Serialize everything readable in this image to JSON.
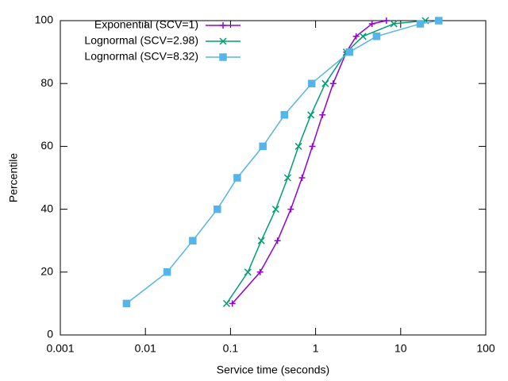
{
  "chart_data": {
    "type": "line",
    "xlabel": "Service time (seconds)",
    "ylabel": "Percentile",
    "xscale": "log",
    "xlim": [
      0.001,
      100
    ],
    "xticks": [
      0.001,
      0.01,
      0.1,
      1,
      10,
      100
    ],
    "ylim": [
      0,
      100
    ],
    "yticks": [
      0,
      20,
      40,
      60,
      80,
      100
    ],
    "legend": "top-left",
    "series": [
      {
        "name": "Exponential (SCV=1)",
        "color": "#9400d3",
        "marker": "plus",
        "x": [
          0.105,
          0.223,
          0.357,
          0.511,
          0.693,
          0.916,
          1.204,
          1.609,
          2.303,
          2.996,
          4.605,
          6.8
        ],
        "values": [
          10,
          20,
          30,
          40,
          50,
          60,
          70,
          80,
          90,
          95,
          99,
          100
        ]
      },
      {
        "name": "Lognormal (SCV=2.98)",
        "color": "#009e73",
        "marker": "cross",
        "x": [
          0.09,
          0.16,
          0.23,
          0.34,
          0.47,
          0.63,
          0.88,
          1.3,
          2.3,
          3.6,
          8.3,
          19.5
        ],
        "values": [
          10,
          20,
          30,
          40,
          50,
          60,
          70,
          80,
          90,
          95,
          99,
          100
        ]
      },
      {
        "name": "Lognormal (SCV=8.32)",
        "color": "#56b4e9",
        "marker": "box",
        "x": [
          0.006,
          0.018,
          0.036,
          0.07,
          0.12,
          0.24,
          0.43,
          0.9,
          2.5,
          5.2,
          17,
          28
        ],
        "values": [
          10,
          20,
          30,
          40,
          50,
          60,
          70,
          80,
          90,
          95,
          99,
          100
        ]
      }
    ]
  }
}
